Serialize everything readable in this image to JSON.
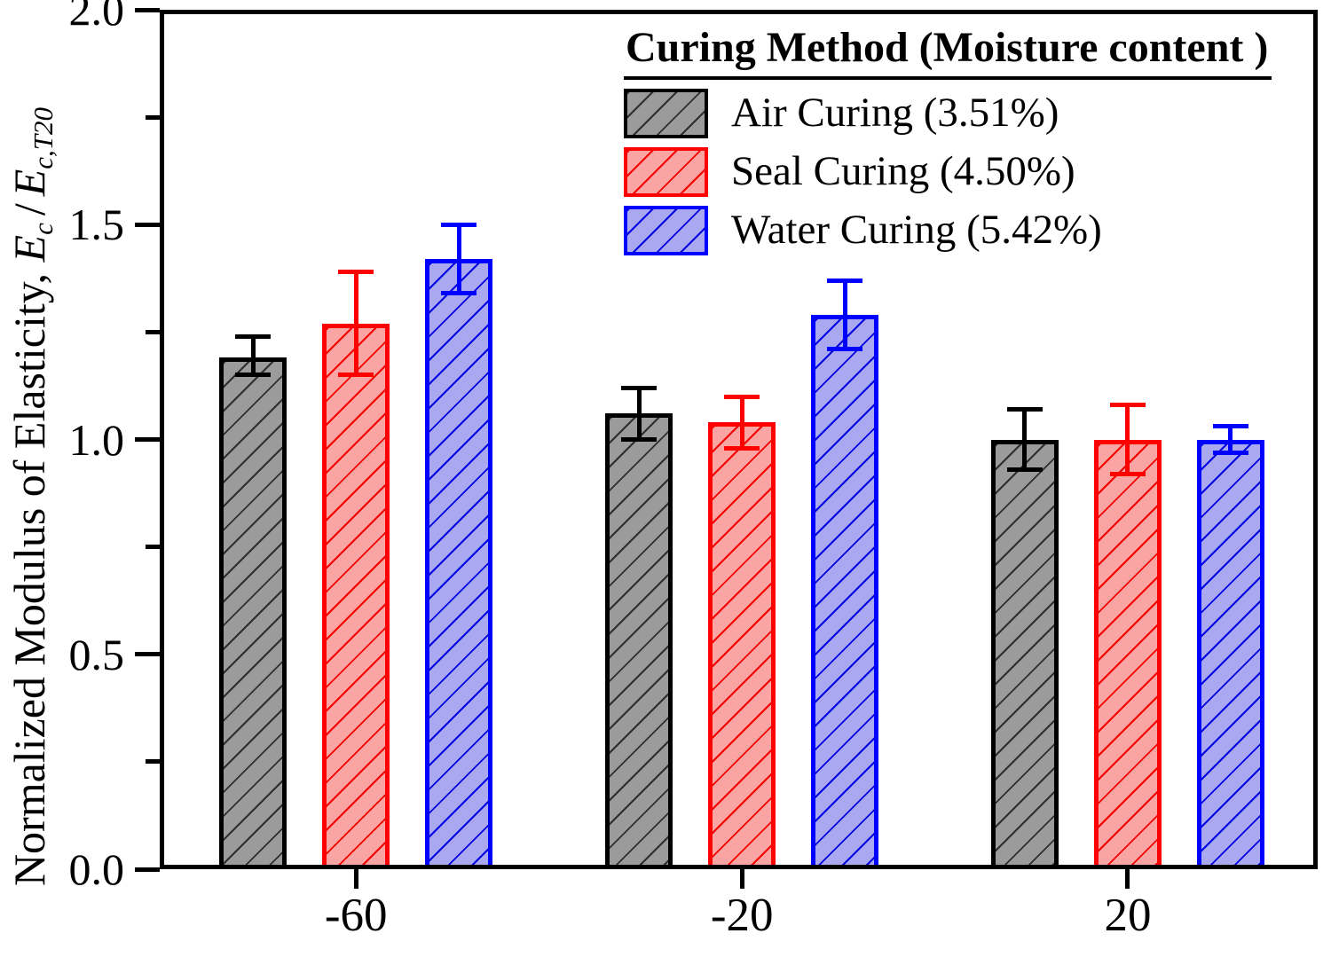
{
  "chart_data": {
    "type": "bar",
    "title": "",
    "legend_title": "Curing Method (Moisture content )",
    "legend_position": "upper right",
    "grid": false,
    "xlabel": "",
    "ylabel": "Normalized Modulus of Elasticity, Ec / Ec,T20",
    "ylabel_parts": {
      "prefix": "Normalized Modulus of Elasticity, ",
      "e1": "E",
      "sub1": "c",
      "sep": "/",
      "e2": "E",
      "sub2": "c,T20"
    },
    "categories": [
      "-60",
      "-20",
      "20"
    ],
    "axis": {
      "ylim": [
        0.0,
        2.0
      ],
      "yticks": [
        0.0,
        0.5,
        1.0,
        1.5,
        2.0
      ],
      "yticklabels": [
        "0.0",
        "0.5",
        "1.0",
        "1.5",
        "2.0"
      ],
      "yticks_minor": [
        0.25,
        0.75,
        1.25,
        1.75
      ]
    },
    "series": [
      {
        "name": "Air Curing (3.51%)",
        "edge_color": "#000000",
        "fill_color": "#9b9b9b",
        "hatch_color": "#2e2e2e",
        "values": [
          1.19,
          1.06,
          1.0
        ],
        "err_lo": [
          1.15,
          1.0,
          0.93
        ],
        "err_hi": [
          1.24,
          1.12,
          1.07
        ]
      },
      {
        "name": "Seal Curing (4.50%)",
        "edge_color": "#ff0000",
        "fill_color": "#fba4a4",
        "hatch_color": "#f50000",
        "values": [
          1.27,
          1.04,
          1.0
        ],
        "err_lo": [
          1.15,
          0.98,
          0.92
        ],
        "err_hi": [
          1.39,
          1.1,
          1.08
        ]
      },
      {
        "name": "Water Curing (5.42%)",
        "edge_color": "#0000ff",
        "fill_color": "#a9a8f0",
        "hatch_color": "#0202e0",
        "values": [
          1.42,
          1.29,
          1.0
        ],
        "err_lo": [
          1.34,
          1.21,
          0.97
        ],
        "err_hi": [
          1.5,
          1.37,
          1.03
        ]
      }
    ]
  }
}
